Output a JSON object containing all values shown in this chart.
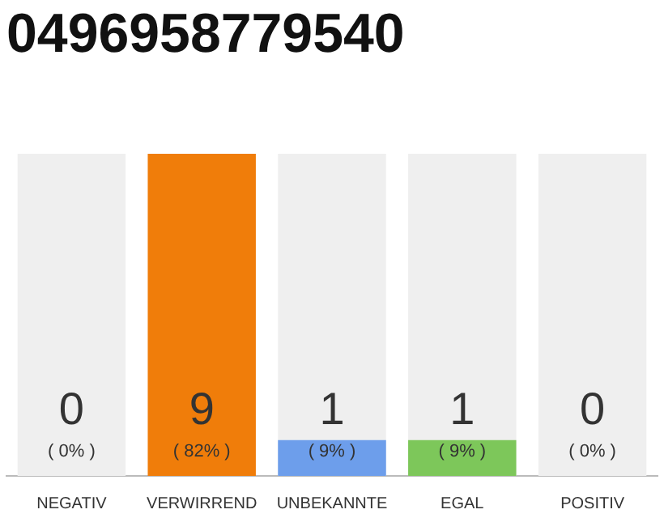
{
  "chart_data": {
    "type": "bar",
    "title": "0496958779540",
    "categories": [
      "NEGATIV",
      "VERWIRREND",
      "UNBEKANNTE",
      "EGAL",
      "POSITIV"
    ],
    "values": [
      0,
      9,
      1,
      1,
      0
    ],
    "colors": [
      "#e06666",
      "#f07d0a",
      "#6d9eeb",
      "#7dc75a",
      "#93c47d"
    ],
    "data_labels": true,
    "annotations": [
      "( 0% )",
      "( 82% )",
      "( 9% )",
      "( 9% )",
      "( 0% )"
    ],
    "bands": [
      {
        "axis": "x",
        "from": "NEGATIV",
        "to": "NEGATIV",
        "color": "#efefef"
      },
      {
        "axis": "x",
        "from": "UNBEKANNTE",
        "to": "UNBEKANNTE",
        "color": "#efefef"
      },
      {
        "axis": "x",
        "from": "EGAL",
        "to": "EGAL",
        "color": "#efefef"
      },
      {
        "axis": "x",
        "from": "POSITIV",
        "to": "POSITIV",
        "color": "#efefef"
      }
    ],
    "grid": false,
    "legend": false
  }
}
